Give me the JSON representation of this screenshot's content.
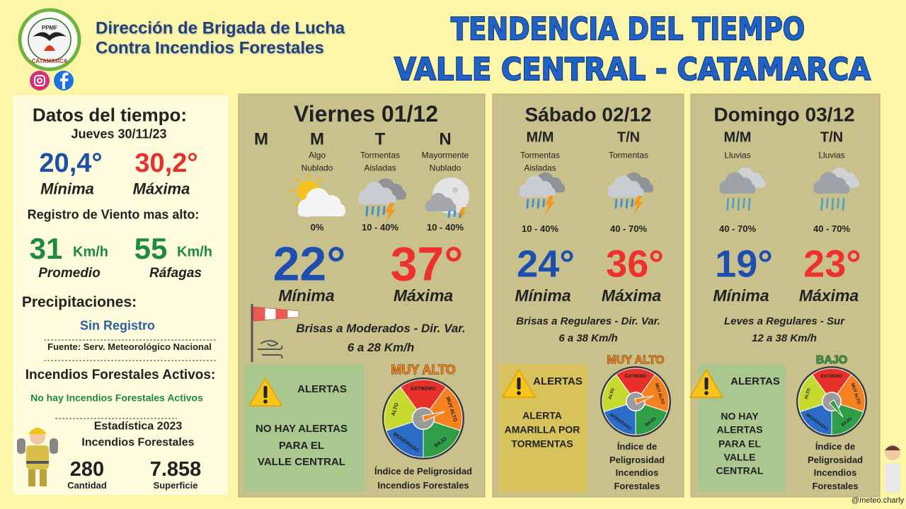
{
  "header": {
    "org": [
      "Dirección de Brigada de Lucha",
      "Contra Incendios Forestales"
    ],
    "logo": {
      "center": "PPMF",
      "bottom": "CATAMARCA"
    },
    "title": [
      "TENDENCIA DEL TIEMPO",
      "VALLE CENTRAL - CATAMARCA"
    ]
  },
  "sidebar": {
    "heading": "Datos del tiempo:",
    "date": "Jueves 30/11/23",
    "min": "20,4°",
    "min_label": "Mínima",
    "max": "30,2°",
    "max_label": "Máxima",
    "wind_heading": "Registro de Viento mas alto:",
    "wind_avg": "31",
    "wind_gust": "55",
    "wind_unit": "Km/h",
    "wind_avg_label": "Promedio",
    "wind_gust_label": "Ráfagas",
    "precip_heading": "Precipitaciones:",
    "precip": "Sin Registro",
    "source": "Fuente: Serv. Meteorológico Nacional",
    "fires_heading": "Incendios Forestales Activos:",
    "fires": "No hay Incendios Forestales Activos",
    "stats_title": [
      "Estadística 2023",
      "Incendios Forestales"
    ],
    "count": "280",
    "count_label": "Cantidad",
    "area": "7.858",
    "area_label": "Superficie"
  },
  "days": [
    {
      "title": "Viernes 01/12",
      "periods": [
        {
          "label": "M"
        },
        {
          "label": "M",
          "desc": [
            "Algo",
            "Nublado"
          ],
          "chance": "0%"
        },
        {
          "label": "T",
          "desc": [
            "Tormentas",
            "Aisladas"
          ],
          "chance": "10 - 40%"
        },
        {
          "label": "N",
          "desc": [
            "Mayormente",
            "Nublado"
          ],
          "chance": "10 - 40%"
        }
      ],
      "min": "22°",
      "max": "37°",
      "min_label": "Mínima",
      "max_label": "Máxima",
      "wind": [
        "Brisas a Moderados - Dir. Var.",
        "6 a 28 Km/h"
      ],
      "alert_title": "ALERTAS",
      "alert": [
        "NO HAY ALERTAS",
        "PARA EL",
        "VALLE CENTRAL"
      ],
      "danger": "MUY ALTO",
      "danger_caption": [
        "Índice de Peligrosidad",
        "Incendios Forestales"
      ]
    },
    {
      "title": "Sábado 02/12",
      "periods": [
        {
          "label": "M/M",
          "desc": [
            "Tormentas",
            "Aisladas"
          ],
          "chance": "10 - 40%"
        },
        {
          "label": "T/N",
          "desc": [
            "Tormentas"
          ],
          "chance": "40 - 70%"
        }
      ],
      "min": "24°",
      "max": "36°",
      "min_label": "Mínima",
      "max_label": "Máxima",
      "wind": [
        "Brisas a Regulares - Dir. Var.",
        "6 a 38 Km/h"
      ],
      "alert_title": "ALERTAS",
      "alert": [
        "ALERTA",
        "AMARILLA POR",
        "TORMENTAS"
      ],
      "danger": "MUY ALTO",
      "danger_caption": [
        "Índice de",
        "Peligrosidad",
        "Incendios",
        "Forestales"
      ]
    },
    {
      "title": "Domingo 03/12",
      "periods": [
        {
          "label": "M/M",
          "desc": [
            "Lluvias"
          ],
          "chance": "40 - 70%"
        },
        {
          "label": "T/N",
          "desc": [
            "Lluvias"
          ],
          "chance": "40 - 70%"
        }
      ],
      "min": "19°",
      "max": "23°",
      "min_label": "Mínima",
      "max_label": "Máxima",
      "wind": [
        "Leves a Regulares - Sur",
        "12 a 38 Km/h"
      ],
      "alert_title": "ALERTAS",
      "alert": [
        "NO HAY",
        "ALERTAS",
        "PARA EL",
        "VALLE",
        "CENTRAL"
      ],
      "danger": "BAJO",
      "danger_caption": [
        "Índice de",
        "Peligrosidad",
        "Incendios",
        "Forestales"
      ]
    }
  ],
  "gauge_labels": [
    "EXTREMO",
    "MUY ALTO",
    "BAJO",
    "MODERADO",
    "ALTO"
  ],
  "credit": "@meteo.charly"
}
